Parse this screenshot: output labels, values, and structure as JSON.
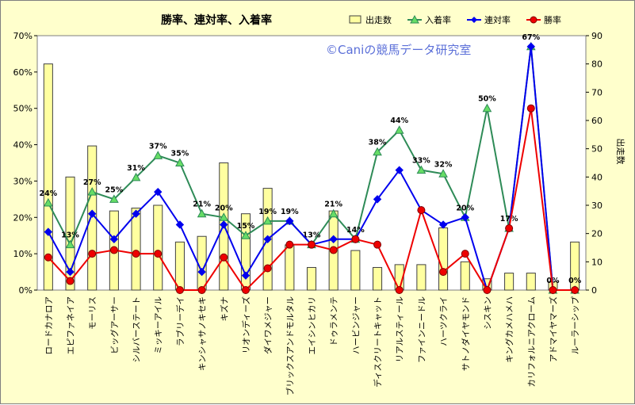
{
  "chart_data": {
    "type": "bar+line",
    "title": "勝率、連対率、入着率",
    "watermark": "©Caniの競馬データ研究室",
    "categories": [
      "ロードカナロア",
      "エピファネイア",
      "モーリス",
      "ビッグアーサー",
      "シルバーステート",
      "ミッキーアイル",
      "ラブリーデイ",
      "キンシャサノキセキ",
      "キズナ",
      "リオンディーズ",
      "ダイワメジャー",
      "ブリックスアンドモルタル",
      "エイシンヒカリ",
      "ドゥラメンテ",
      "ハービンジャー",
      "ディスクリートキャット",
      "リアルスティール",
      "ファインニードル",
      "ハーツクライ",
      "サトノダイヤモンド",
      "シスキン",
      "キングカメハメハ",
      "カリフォルニアクローム",
      "アドマイヤマーズ",
      "ルーラーシップ"
    ],
    "left_axis": {
      "min": 0,
      "max": 0.7,
      "step": 0.1,
      "tick_labels": [
        "0%",
        "10%",
        "20%",
        "30%",
        "40%",
        "50%",
        "60%",
        "70%"
      ]
    },
    "right_axis": {
      "label": "出走数",
      "min": 0,
      "max": 90,
      "step": 10,
      "tick_labels": [
        "0",
        "10",
        "20",
        "30",
        "40",
        "50",
        "60",
        "70",
        "80",
        "90"
      ]
    },
    "series": [
      {
        "name": "出走数",
        "kind": "bar",
        "axis": "right",
        "color": "#ffffa0",
        "values": [
          80,
          40,
          51,
          28,
          29,
          30,
          17,
          19,
          45,
          27,
          36,
          16,
          8,
          28,
          14,
          8,
          9,
          9,
          22,
          10,
          4,
          6,
          6,
          3,
          17
        ]
      },
      {
        "name": "入着率",
        "kind": "line",
        "axis": "left",
        "color": "#2e8b57",
        "marker_fill": "#66dd66",
        "values": [
          0.24,
          0.125,
          0.27,
          0.25,
          0.31,
          0.37,
          0.35,
          0.21,
          0.2,
          0.15,
          0.19,
          0.19,
          0.125,
          0.21,
          0.14,
          0.38,
          0.44,
          0.33,
          0.32,
          0.2,
          0.5,
          0.17,
          0.67,
          0,
          0
        ],
        "labels": [
          "24%",
          "13%",
          "27%",
          "25%",
          "31%",
          "37%",
          "35%",
          "21%",
          "20%",
          "15%",
          "19%",
          "19%",
          "13%",
          "21%",
          "14%",
          "38%",
          "44%",
          "33%",
          "32%",
          "20%",
          "50%",
          "17%",
          "67%",
          "0%",
          "0%"
        ]
      },
      {
        "name": "連対率",
        "kind": "line",
        "axis": "left",
        "color": "#0000ee",
        "values": [
          0.16,
          0.05,
          0.21,
          0.14,
          0.21,
          0.27,
          0.18,
          0.05,
          0.18,
          0.04,
          0.14,
          0.19,
          0.125,
          0.14,
          0.14,
          0.25,
          0.33,
          0.22,
          0.18,
          0.2,
          0,
          0.17,
          0.67,
          0,
          0
        ]
      },
      {
        "name": "勝率",
        "kind": "line",
        "axis": "left",
        "color": "#ee0000",
        "values": [
          0.09,
          0.025,
          0.1,
          0.11,
          0.1,
          0.1,
          0,
          0,
          0.09,
          0,
          0.06,
          0.125,
          0.125,
          0.11,
          0.14,
          0.125,
          0,
          0.22,
          0.05,
          0.1,
          0,
          0.17,
          0.5,
          0,
          0
        ]
      }
    ],
    "legend_position": "top-right",
    "grid": false
  }
}
